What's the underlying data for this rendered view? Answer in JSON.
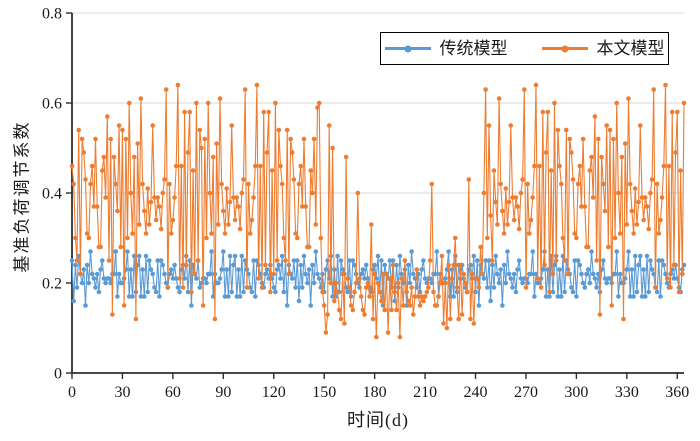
{
  "figure": {
    "background": "#ffffff",
    "axis_color": "#2e2e2e",
    "grid_color": "#d9d9d9",
    "text_color": "#1a1a1a"
  },
  "chart_data": {
    "type": "line",
    "title": "",
    "xlabel": "时间(d)",
    "ylabel": "基准负荷调节系数",
    "xlim": [
      0,
      364
    ],
    "ylim": [
      0,
      0.8
    ],
    "x_ticks": [
      0,
      30,
      60,
      90,
      120,
      150,
      180,
      210,
      240,
      270,
      300,
      330,
      360
    ],
    "x_tick_labels": [
      "0",
      "30",
      "60",
      "90",
      "120",
      "150",
      "180",
      "210",
      "240",
      "270",
      "300",
      "330",
      "360"
    ],
    "y_ticks": [
      0,
      0.2,
      0.4,
      0.6,
      0.8
    ],
    "y_tick_labels": [
      "0",
      "0.2",
      "0.4",
      "0.6",
      "0.8"
    ],
    "grid": "horizontal",
    "legend_position": "top-right-inside",
    "x_start": 0,
    "x_step": 1,
    "series": [
      {
        "id": "traditional-model",
        "name": "传统模型",
        "color": "#5B9BD5",
        "marker": "circle",
        "values": [
          0.25,
          0.16,
          0.24,
          0.19,
          0.26,
          0.22,
          0.2,
          0.23,
          0.15,
          0.24,
          0.2,
          0.27,
          0.22,
          0.21,
          0.19,
          0.22,
          0.18,
          0.23,
          0.25,
          0.21,
          0.2,
          0.21,
          0.21,
          0.2,
          0.22,
          0.22,
          0.27,
          0.17,
          0.22,
          0.2,
          0.2,
          0.21,
          0.23,
          0.27,
          0.17,
          0.23,
          0.17,
          0.26,
          0.18,
          0.24,
          0.26,
          0.17,
          0.23,
          0.17,
          0.26,
          0.18,
          0.25,
          0.23,
          0.22,
          0.19,
          0.18,
          0.25,
          0.17,
          0.25,
          0.24,
          0.22,
          0.2,
          0.19,
          0.22,
          0.23,
          0.21,
          0.24,
          0.21,
          0.19,
          0.18,
          0.23,
          0.24,
          0.21,
          0.26,
          0.18,
          0.25,
          0.15,
          0.24,
          0.22,
          0.21,
          0.25,
          0.19,
          0.2,
          0.21,
          0.21,
          0.2,
          0.22,
          0.22,
          0.27,
          0.17,
          0.22,
          0.2,
          0.2,
          0.21,
          0.23,
          0.27,
          0.17,
          0.23,
          0.17,
          0.26,
          0.18,
          0.24,
          0.26,
          0.17,
          0.23,
          0.17,
          0.26,
          0.18,
          0.25,
          0.23,
          0.22,
          0.19,
          0.18,
          0.25,
          0.17,
          0.25,
          0.24,
          0.22,
          0.2,
          0.19,
          0.22,
          0.23,
          0.21,
          0.24,
          0.21,
          0.19,
          0.18,
          0.23,
          0.24,
          0.21,
          0.26,
          0.18,
          0.25,
          0.15,
          0.24,
          0.22,
          0.21,
          0.25,
          0.19,
          0.25,
          0.16,
          0.24,
          0.19,
          0.26,
          0.22,
          0.2,
          0.23,
          0.15,
          0.24,
          0.2,
          0.27,
          0.22,
          0.21,
          0.19,
          0.22,
          0.18,
          0.23,
          0.25,
          0.21,
          0.26,
          0.17,
          0.23,
          0.17,
          0.26,
          0.18,
          0.25,
          0.23,
          0.22,
          0.19,
          0.18,
          0.25,
          0.17,
          0.25,
          0.24,
          0.22,
          0.2,
          0.19,
          0.22,
          0.23,
          0.21,
          0.24,
          0.21,
          0.19,
          0.18,
          0.23,
          0.24,
          0.21,
          0.26,
          0.18,
          0.25,
          0.15,
          0.24,
          0.22,
          0.21,
          0.25,
          0.19,
          0.25,
          0.16,
          0.24,
          0.19,
          0.26,
          0.22,
          0.2,
          0.23,
          0.15,
          0.24,
          0.2,
          0.27,
          0.22,
          0.21,
          0.19,
          0.22,
          0.18,
          0.23,
          0.25,
          0.21,
          0.2,
          0.21,
          0.21,
          0.2,
          0.22,
          0.22,
          0.27,
          0.17,
          0.22,
          0.2,
          0.2,
          0.21,
          0.23,
          0.27,
          0.17,
          0.23,
          0.17,
          0.26,
          0.18,
          0.24,
          0.21,
          0.24,
          0.21,
          0.19,
          0.18,
          0.23,
          0.24,
          0.21,
          0.26,
          0.18,
          0.25,
          0.15,
          0.24,
          0.22,
          0.21,
          0.25,
          0.19,
          0.25,
          0.16,
          0.24,
          0.19,
          0.26,
          0.22,
          0.2,
          0.23,
          0.15,
          0.24,
          0.2,
          0.27,
          0.22,
          0.21,
          0.19,
          0.22,
          0.18,
          0.23,
          0.25,
          0.21,
          0.2,
          0.21,
          0.21,
          0.2,
          0.22,
          0.22,
          0.27,
          0.17,
          0.22,
          0.2,
          0.2,
          0.21,
          0.23,
          0.27,
          0.17,
          0.23,
          0.17,
          0.26,
          0.18,
          0.24,
          0.26,
          0.17,
          0.23,
          0.17,
          0.26,
          0.18,
          0.25,
          0.23,
          0.22,
          0.19,
          0.18,
          0.25,
          0.17,
          0.25,
          0.24,
          0.22,
          0.2,
          0.19,
          0.22,
          0.23,
          0.2,
          0.27,
          0.22,
          0.21,
          0.19,
          0.22,
          0.18,
          0.23,
          0.25,
          0.21,
          0.2,
          0.21,
          0.21,
          0.2,
          0.22,
          0.22,
          0.27,
          0.17,
          0.22,
          0.2,
          0.2,
          0.21,
          0.23,
          0.27,
          0.17,
          0.23,
          0.17,
          0.26,
          0.18,
          0.24,
          0.26,
          0.17,
          0.23,
          0.17,
          0.26,
          0.18,
          0.25,
          0.23,
          0.22,
          0.19,
          0.18,
          0.25,
          0.17,
          0.25,
          0.24,
          0.22,
          0.2,
          0.19,
          0.22,
          0.23,
          0.21,
          0.24,
          0.21,
          0.19,
          0.18,
          0.23,
          0.24
        ]
      },
      {
        "id": "proposed-model",
        "name": "本文模型",
        "color": "#ED7D31",
        "marker": "circle",
        "values": [
          0.46,
          0.42,
          0.3,
          0.25,
          0.54,
          0.22,
          0.52,
          0.49,
          0.43,
          0.31,
          0.3,
          0.42,
          0.46,
          0.37,
          0.52,
          0.37,
          0.28,
          0.28,
          0.45,
          0.48,
          0.39,
          0.57,
          0.25,
          0.52,
          0.13,
          0.48,
          0.42,
          0.36,
          0.55,
          0.28,
          0.54,
          0.15,
          0.52,
          0.3,
          0.6,
          0.4,
          0.31,
          0.48,
          0.12,
          0.51,
          0.33,
          0.61,
          0.42,
          0.36,
          0.31,
          0.41,
          0.33,
          0.38,
          0.55,
          0.39,
          0.34,
          0.39,
          0.37,
          0.32,
          0.4,
          0.43,
          0.63,
          0.19,
          0.42,
          0.31,
          0.34,
          0.39,
          0.46,
          0.64,
          0.21,
          0.46,
          0.19,
          0.58,
          0.24,
          0.49,
          0.58,
          0.18,
          0.45,
          0.22,
          0.6,
          0.25,
          0.54,
          0.5,
          0.15,
          0.52,
          0.3,
          0.6,
          0.4,
          0.31,
          0.48,
          0.12,
          0.51,
          0.33,
          0.61,
          0.42,
          0.36,
          0.31,
          0.41,
          0.33,
          0.38,
          0.55,
          0.39,
          0.34,
          0.39,
          0.37,
          0.32,
          0.4,
          0.43,
          0.63,
          0.19,
          0.42,
          0.31,
          0.34,
          0.39,
          0.46,
          0.64,
          0.21,
          0.46,
          0.19,
          0.58,
          0.24,
          0.49,
          0.58,
          0.18,
          0.45,
          0.22,
          0.6,
          0.25,
          0.54,
          0.46,
          0.42,
          0.3,
          0.25,
          0.54,
          0.22,
          0.52,
          0.49,
          0.43,
          0.31,
          0.3,
          0.42,
          0.46,
          0.37,
          0.52,
          0.37,
          0.28,
          0.28,
          0.45,
          0.4,
          0.52,
          0.33,
          0.59,
          0.6,
          0.3,
          0.18,
          0.15,
          0.09,
          0.13,
          0.55,
          0.2,
          0.5,
          0.16,
          0.2,
          0.18,
          0.14,
          0.12,
          0.22,
          0.11,
          0.48,
          0.21,
          0.19,
          0.15,
          0.14,
          0.18,
          0.2,
          0.4,
          0.21,
          0.17,
          0.14,
          0.13,
          0.19,
          0.2,
          0.17,
          0.33,
          0.12,
          0.22,
          0.08,
          0.2,
          0.18,
          0.16,
          0.22,
          0.14,
          0.22,
          0.09,
          0.21,
          0.14,
          0.24,
          0.18,
          0.14,
          0.2,
          0.08,
          0.21,
          0.15,
          0.25,
          0.18,
          0.16,
          0.15,
          0.19,
          0.13,
          0.17,
          0.23,
          0.17,
          0.15,
          0.17,
          0.16,
          0.17,
          0.18,
          0.19,
          0.25,
          0.42,
          0.18,
          0.15,
          0.15,
          0.17,
          0.2,
          0.26,
          0.11,
          0.2,
          0.1,
          0.24,
          0.12,
          0.21,
          0.24,
          0.3,
          0.19,
          0.12,
          0.24,
          0.13,
          0.22,
          0.2,
          0.18,
          0.43,
          0.12,
          0.22,
          0.11,
          0.21,
          0.21,
          0.19,
          0.28,
          0.22,
          0.4,
          0.63,
          0.3,
          0.55,
          0.35,
          0.25,
          0.45,
          0.38,
          0.33,
          0.61,
          0.42,
          0.36,
          0.31,
          0.41,
          0.33,
          0.38,
          0.55,
          0.39,
          0.34,
          0.39,
          0.37,
          0.32,
          0.4,
          0.43,
          0.63,
          0.19,
          0.42,
          0.31,
          0.34,
          0.39,
          0.46,
          0.64,
          0.21,
          0.46,
          0.19,
          0.58,
          0.24,
          0.49,
          0.58,
          0.18,
          0.45,
          0.22,
          0.6,
          0.25,
          0.54,
          0.46,
          0.42,
          0.3,
          0.25,
          0.54,
          0.22,
          0.52,
          0.49,
          0.43,
          0.31,
          0.3,
          0.42,
          0.46,
          0.37,
          0.52,
          0.37,
          0.28,
          0.28,
          0.45,
          0.48,
          0.39,
          0.57,
          0.25,
          0.52,
          0.13,
          0.48,
          0.42,
          0.36,
          0.55,
          0.28,
          0.54,
          0.15,
          0.52,
          0.3,
          0.6,
          0.4,
          0.31,
          0.48,
          0.12,
          0.51,
          0.33,
          0.61,
          0.42,
          0.36,
          0.31,
          0.41,
          0.33,
          0.38,
          0.55,
          0.39,
          0.34,
          0.39,
          0.37,
          0.32,
          0.4,
          0.43,
          0.63,
          0.19,
          0.42,
          0.31,
          0.34,
          0.39,
          0.46,
          0.64,
          0.21,
          0.46,
          0.19,
          0.58,
          0.24,
          0.49,
          0.58,
          0.18,
          0.45,
          0.22,
          0.6
        ]
      }
    ]
  }
}
